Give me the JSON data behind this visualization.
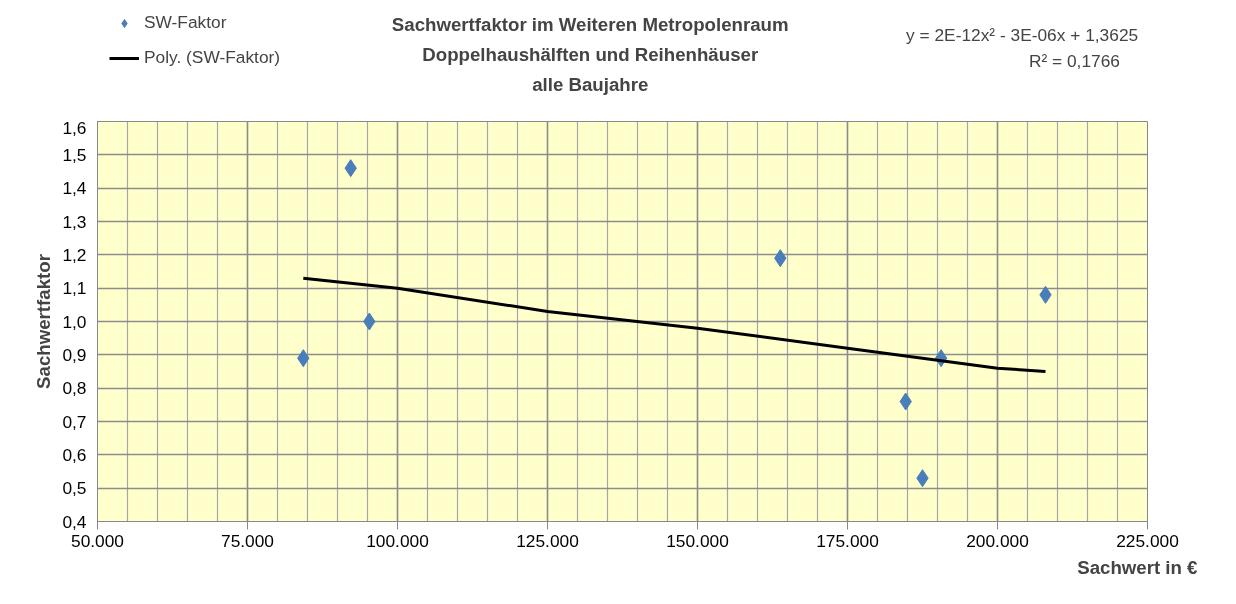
{
  "chart_data": {
    "type": "scatter",
    "title": "Sachwertfaktor im Weiteren Metropolenraum\nDoppelhaushälften und Reihenhäuser\nalle Baujahre",
    "xlabel": "Sachwert in €",
    "ylabel": "Sachwertfaktor",
    "annotations": [
      "y = 2E-12x² - 3E-06x + 1,3625\nR² = 0,1766"
    ],
    "series": [
      {
        "name": "SW-Faktor",
        "color": "#4a7ebb",
        "marker": "diamond",
        "x": [
          84300,
          92200,
          95300,
          163800,
          208000,
          190600,
          184700,
          187500
        ],
        "values": [
          0.89,
          1.46,
          1.0,
          1.19,
          1.08,
          0.89,
          0.76,
          0.53
        ]
      },
      {
        "name": "Poly. (SW-Faktor)",
        "color": "#000000",
        "type": "line",
        "marker": "none",
        "x": [
          84300,
          100000,
          125000,
          150000,
          175000,
          200000,
          208000
        ],
        "values": [
          1.13,
          1.1,
          1.03,
          0.98,
          0.92,
          0.86,
          0.85
        ]
      }
    ],
    "xlim": [
      50000,
      225000
    ],
    "ylim": [
      0.4,
      1.6
    ],
    "xticks": [
      {
        "value": 50000,
        "label": "50.000"
      },
      {
        "value": 75000,
        "label": "75.000"
      },
      {
        "value": 100000,
        "label": "100.000"
      },
      {
        "value": 125000,
        "label": "125.000"
      },
      {
        "value": 150000,
        "label": "150.000"
      },
      {
        "value": 175000,
        "label": "175.000"
      },
      {
        "value": 200000,
        "label": "200.000"
      },
      {
        "value": 225000,
        "label": "225.000"
      }
    ],
    "yticks": [
      {
        "value": 0.4,
        "label": "0,4"
      },
      {
        "value": 0.5,
        "label": "0,5"
      },
      {
        "value": 0.6,
        "label": "0,6"
      },
      {
        "value": 0.7,
        "label": "0,7"
      },
      {
        "value": 0.8,
        "label": "0,8"
      },
      {
        "value": 0.9,
        "label": "0,9"
      },
      {
        "value": 1.0,
        "label": "1,0"
      },
      {
        "value": 1.1,
        "label": "1,1"
      },
      {
        "value": 1.2,
        "label": "1,2"
      },
      {
        "value": 1.3,
        "label": "1,3"
      },
      {
        "value": 1.4,
        "label": "1,4"
      },
      {
        "value": 1.5,
        "label": "1,5"
      },
      {
        "value": 1.6,
        "label": "1,6"
      }
    ],
    "grid": true,
    "legend": "top left"
  }
}
